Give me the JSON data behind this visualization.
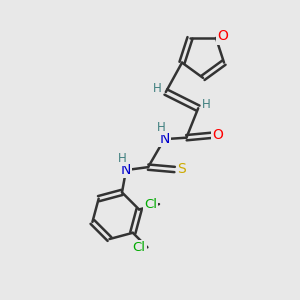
{
  "bg_color": "#e8e8e8",
  "bond_color": "#333333",
  "bond_width": 1.8,
  "atom_colors": {
    "O": "#ff0000",
    "N": "#0000cc",
    "S": "#ccaa00",
    "Cl": "#00aa00",
    "C": "#333333",
    "H": "#408080"
  },
  "font_size_atom": 10,
  "font_size_h": 8.5,
  "font_size_cl": 9.5
}
